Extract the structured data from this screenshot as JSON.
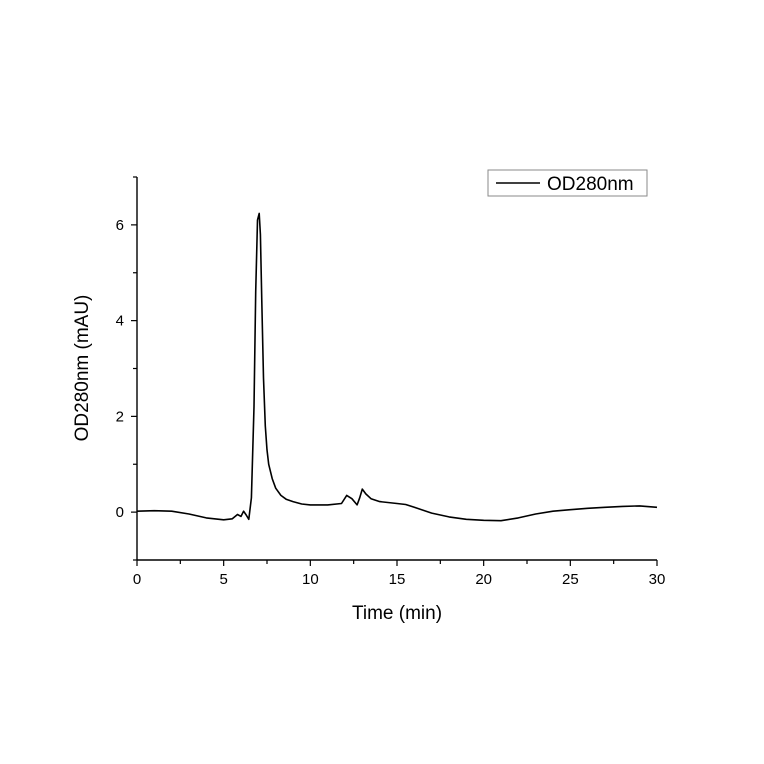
{
  "chart_data": {
    "type": "line",
    "title": "",
    "xlabel": "Time (min)",
    "ylabel": "OD280nm (mAU)",
    "xlim": [
      0,
      30
    ],
    "ylim": [
      -1,
      7
    ],
    "xticks": [
      0,
      5,
      10,
      15,
      20,
      25,
      30
    ],
    "xtick_labels": [
      "0",
      "5",
      "10",
      "15",
      "20",
      "25",
      "30"
    ],
    "xminor": [
      2.5,
      7.5,
      12.5,
      17.5,
      22.5,
      27.5
    ],
    "yticks": [
      0,
      2,
      4,
      6
    ],
    "ytick_labels": [
      "0",
      "2",
      "4",
      "6"
    ],
    "yminor": [
      -1,
      1,
      3,
      5,
      7
    ],
    "grid": false,
    "legend": {
      "position": "upper right",
      "entries": [
        "OD280nm"
      ]
    },
    "series": [
      {
        "name": "OD280nm",
        "color": "#000000",
        "x": [
          0,
          1,
          2,
          3,
          4,
          5,
          5.5,
          5.8,
          6.0,
          6.15,
          6.3,
          6.45,
          6.6,
          6.75,
          6.85,
          6.95,
          7.05,
          7.12,
          7.2,
          7.3,
          7.4,
          7.5,
          7.6,
          7.8,
          8.0,
          8.3,
          8.6,
          9.0,
          9.5,
          10,
          11,
          11.8,
          12.1,
          12.4,
          12.7,
          12.85,
          13.0,
          13.2,
          13.5,
          14,
          15,
          15.5,
          16,
          17,
          18,
          19,
          20,
          21,
          22,
          23,
          24,
          25,
          26,
          27,
          28,
          29,
          30
        ],
        "y": [
          0.02,
          0.03,
          0.02,
          -0.04,
          -0.12,
          -0.16,
          -0.14,
          -0.05,
          -0.09,
          0.02,
          -0.06,
          -0.15,
          0.3,
          2.2,
          4.6,
          6.1,
          6.24,
          5.8,
          4.4,
          2.8,
          1.8,
          1.3,
          1.0,
          0.7,
          0.5,
          0.35,
          0.27,
          0.22,
          0.17,
          0.15,
          0.15,
          0.18,
          0.35,
          0.28,
          0.15,
          0.3,
          0.48,
          0.38,
          0.28,
          0.22,
          0.18,
          0.16,
          0.1,
          -0.02,
          -0.1,
          -0.15,
          -0.17,
          -0.18,
          -0.12,
          -0.04,
          0.02,
          0.05,
          0.08,
          0.1,
          0.12,
          0.13,
          0.1
        ]
      }
    ]
  }
}
